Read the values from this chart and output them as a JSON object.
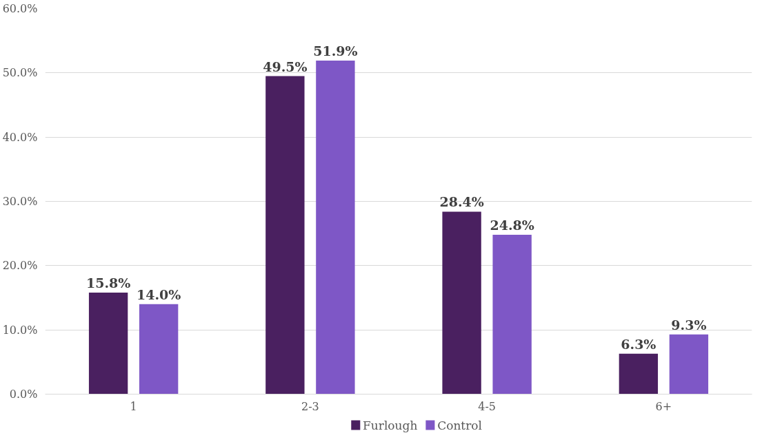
{
  "chart_data": {
    "type": "bar",
    "categories": [
      "1",
      "2-3",
      "4-5",
      "6+"
    ],
    "series": [
      {
        "name": "Furlough",
        "color": "#4a2060",
        "values": [
          15.8,
          49.5,
          28.4,
          6.3
        ],
        "value_labels": [
          "15.8%",
          "49.5%",
          "28.4%",
          "6.3%"
        ]
      },
      {
        "name": "Control",
        "color": "#7e57c6",
        "values": [
          14.0,
          51.9,
          24.8,
          9.3
        ],
        "value_labels": [
          "14.0%",
          "51.9%",
          "24.8%",
          "9.3%"
        ]
      }
    ],
    "ylim": [
      0,
      60
    ],
    "yticks": [
      {
        "value": 0,
        "label": "0.0%"
      },
      {
        "value": 10,
        "label": "10.0%"
      },
      {
        "value": 20,
        "label": "20.0%"
      },
      {
        "value": 30,
        "label": "30.0%"
      },
      {
        "value": 40,
        "label": "40.0%"
      },
      {
        "value": 50,
        "label": "50.0%"
      },
      {
        "value": 60,
        "label": "60.0%"
      }
    ],
    "grid": "y",
    "legend": "bottom"
  }
}
